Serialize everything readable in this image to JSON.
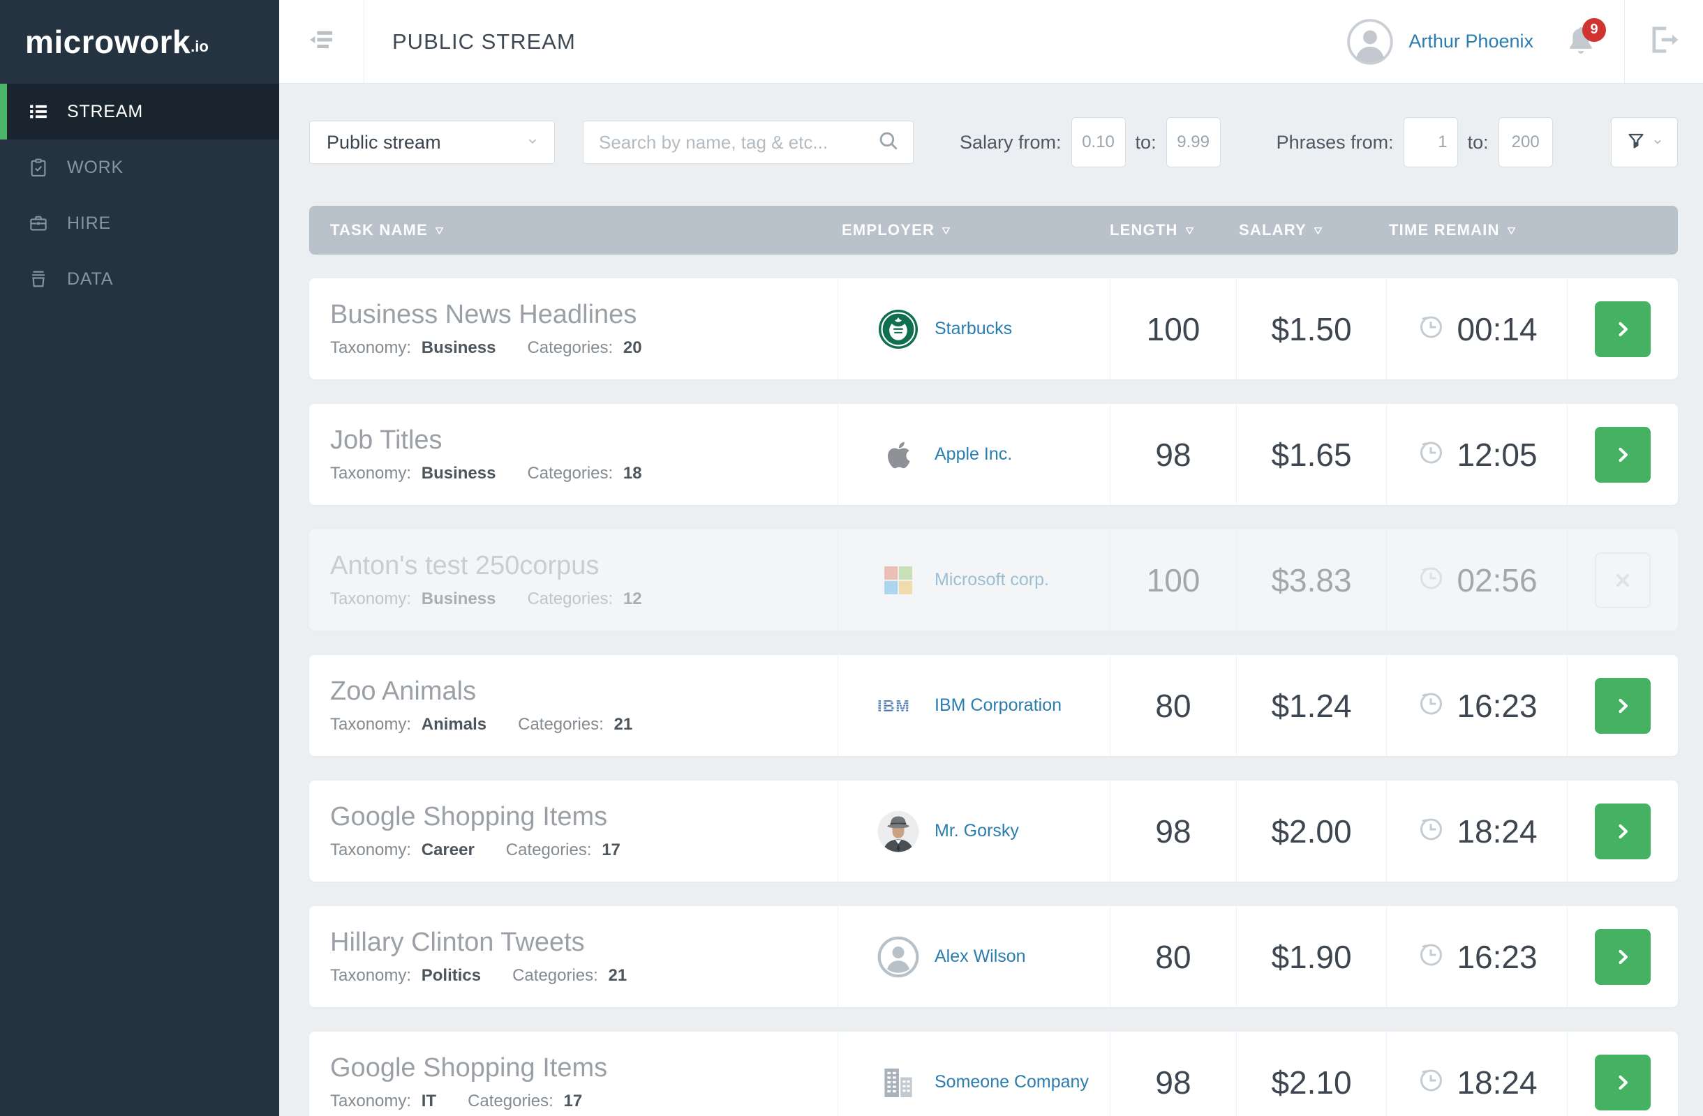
{
  "app": {
    "logo": "microwork",
    "logo_suffix": ".io"
  },
  "sidebar": {
    "items": [
      {
        "label": "STREAM",
        "icon": "list-icon",
        "active": true
      },
      {
        "label": "WORK",
        "icon": "clipboard-check-icon",
        "active": false
      },
      {
        "label": "HIRE",
        "icon": "briefcase-icon",
        "active": false
      },
      {
        "label": "DATA",
        "icon": "bin-icon",
        "active": false
      }
    ]
  },
  "header": {
    "title": "PUBLIC STREAM",
    "collapse_icon": "menu-fold-icon",
    "user_name": "Arthur Phoenix",
    "user_avatar_icon": "person-icon",
    "notification_icon": "bell-icon",
    "notification_count": "9",
    "logout_icon": "logout-icon"
  },
  "filters": {
    "stream_select": {
      "value": "Public stream",
      "chevron_icon": "chevron-down-icon"
    },
    "search": {
      "placeholder": "Search by name, tag & etc...",
      "value": "",
      "icon": "search-icon"
    },
    "salary": {
      "label": "Salary from:",
      "from": "0.10",
      "to_label": "to:",
      "to": "9.99"
    },
    "phrases": {
      "label": "Phrases from:",
      "from": "1",
      "to_label": "to:",
      "to": "200"
    },
    "filter_button_icons": [
      "funnel-icon",
      "chevron-down-icon"
    ]
  },
  "table": {
    "meta_labels": {
      "taxonomy": "Taxonomy:",
      "categories": "Categories:"
    },
    "columns": [
      {
        "label": "TASK NAME",
        "sort_icon": "sort-down-icon",
        "class": "th-task"
      },
      {
        "label": "EMPLOYER",
        "sort_icon": "sort-down-icon",
        "class": "th-emp"
      },
      {
        "label": "LENGTH",
        "sort_icon": "sort-down-icon",
        "class": "th-len"
      },
      {
        "label": "SALARY",
        "sort_icon": "sort-down-icon",
        "class": "th-sal"
      },
      {
        "label": "TIME REMAIN",
        "sort_icon": "sort-down-icon",
        "class": "th-time"
      }
    ],
    "time_icon": "clock-history-icon",
    "rows": [
      {
        "title": "Business News Headlines",
        "taxonomy": "Business",
        "categories": "20",
        "employer": {
          "name": "Starbucks",
          "logo": "starbucks-logo"
        },
        "length": "100",
        "salary": "$1.50",
        "time_remain": "00:14",
        "action": "open",
        "disabled": false
      },
      {
        "title": "Job Titles",
        "taxonomy": "Business",
        "categories": "18",
        "employer": {
          "name": "Apple Inc.",
          "logo": "apple-logo"
        },
        "length": "98",
        "salary": "$1.65",
        "time_remain": "12:05",
        "action": "open",
        "disabled": false
      },
      {
        "title": "Anton's test 250corpus",
        "taxonomy": "Business",
        "categories": "12",
        "employer": {
          "name": "Microsoft corp.",
          "logo": "microsoft-logo"
        },
        "length": "100",
        "salary": "$3.83",
        "time_remain": "02:56",
        "action": "close",
        "disabled": true
      },
      {
        "title": "Zoo Animals",
        "taxonomy": "Animals",
        "categories": "21",
        "employer": {
          "name": "IBM Corporation",
          "logo": "ibm-logo"
        },
        "length": "80",
        "salary": "$1.24",
        "time_remain": "16:23",
        "action": "open",
        "disabled": false
      },
      {
        "title": "Google Shopping Items",
        "taxonomy": "Career",
        "categories": "17",
        "employer": {
          "name": "Mr. Gorsky",
          "logo": "man-photo-avatar"
        },
        "length": "98",
        "salary": "$2.00",
        "time_remain": "18:24",
        "action": "open",
        "disabled": false
      },
      {
        "title": "Hillary Clinton Tweets",
        "taxonomy": "Politics",
        "categories": "21",
        "employer": {
          "name": "Alex Wilson",
          "logo": "person-circle-icon"
        },
        "length": "80",
        "salary": "$1.90",
        "time_remain": "16:23",
        "action": "open",
        "disabled": false
      },
      {
        "title": "Google Shopping Items",
        "taxonomy": "IT",
        "categories": "17",
        "employer": {
          "name": "Someone Company",
          "logo": "buildings-icon"
        },
        "length": "98",
        "salary": "$2.10",
        "time_remain": "18:24",
        "action": "open",
        "disabled": false
      }
    ]
  },
  "colors": {
    "page_bg": "#eceff1",
    "sidebar_bg": "#253341",
    "sidebar_active_bg": "#1a242e",
    "accent_green": "#44b163",
    "link_blue": "#2b7db0",
    "table_header_bg": "#b9c2ca",
    "badge_red": "#cf3430",
    "title_gray": "#9aa0a5",
    "number_dark": "#3d4650"
  }
}
